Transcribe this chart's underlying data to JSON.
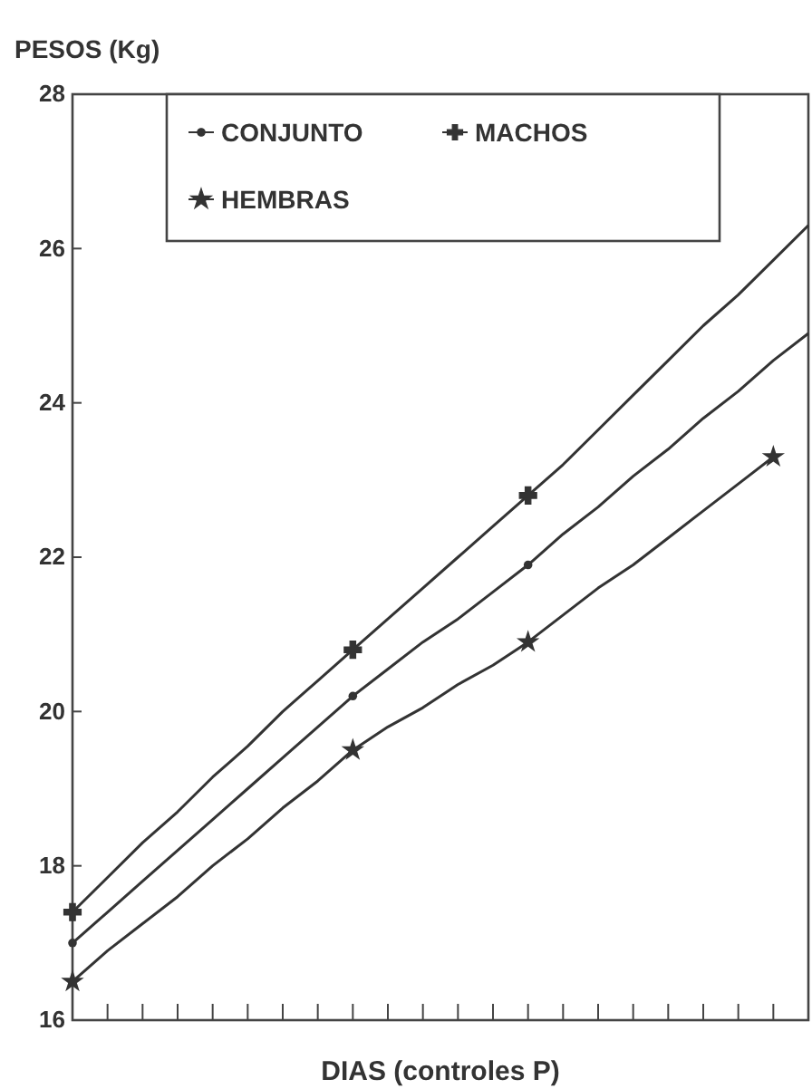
{
  "chart_data": {
    "type": "line",
    "ylabel": "PESOS (Kg)",
    "xlabel": "DIAS (controles P)",
    "categories": [
      null,
      null,
      null,
      null,
      null,
      null,
      null,
      null,
      null,
      null,
      null,
      null,
      null,
      null,
      null,
      null,
      null,
      null,
      null,
      null,
      null,
      null
    ],
    "ylim": [
      16,
      28
    ],
    "yticks": [
      16,
      18,
      20,
      22,
      24,
      26,
      28
    ],
    "tick_labels": "y",
    "legend": "top",
    "line_style": "solid",
    "series": [
      {
        "name": "CONJUNTO",
        "color": "#333333",
        "values": [
          17.0,
          17.4,
          17.8,
          18.2,
          18.6,
          19.0,
          19.4,
          19.8,
          20.2,
          20.55,
          20.9,
          21.2,
          21.55,
          21.9,
          22.3,
          22.65,
          23.05,
          23.4,
          23.8,
          24.15,
          24.55,
          24.9
        ]
      },
      {
        "name": "MACHOS",
        "color": "#333333",
        "values": [
          17.4,
          17.85,
          18.3,
          18.7,
          19.15,
          19.55,
          20.0,
          20.4,
          20.8,
          21.2,
          21.6,
          22.0,
          22.4,
          22.8,
          23.2,
          23.65,
          24.1,
          24.55,
          25.0,
          25.4,
          25.85,
          26.3
        ]
      },
      {
        "name": "HEMBRAS",
        "color": "#333333",
        "values": [
          16.5,
          16.9,
          17.25,
          17.6,
          18.0,
          18.35,
          18.75,
          19.1,
          19.5,
          19.8,
          20.05,
          20.35,
          20.6,
          20.9,
          21.25,
          21.6,
          21.9,
          22.25,
          22.6,
          22.95,
          23.3,
          null
        ]
      },
      {
        "type": "scatter",
        "color": "#333333",
        "marker": "circle",
        "values": [
          17.0,
          null,
          null,
          null,
          null,
          null,
          null,
          null,
          20.2,
          null,
          null,
          null,
          null,
          21.9,
          null,
          null,
          null,
          null,
          null,
          null,
          null,
          null
        ]
      },
      {
        "type": "scatter",
        "color": "#333333",
        "marker": "cross",
        "values": [
          17.4,
          null,
          null,
          null,
          null,
          null,
          null,
          null,
          20.8,
          null,
          null,
          null,
          null,
          22.8,
          null,
          null,
          null,
          null,
          null,
          null,
          null,
          null
        ]
      },
      {
        "type": "scatter",
        "color": "#333333",
        "marker": "star",
        "values": [
          16.5,
          null,
          null,
          null,
          null,
          null,
          null,
          null,
          19.5,
          null,
          null,
          null,
          null,
          20.9,
          null,
          null,
          null,
          null,
          null,
          null,
          23.3,
          null
        ]
      }
    ]
  }
}
